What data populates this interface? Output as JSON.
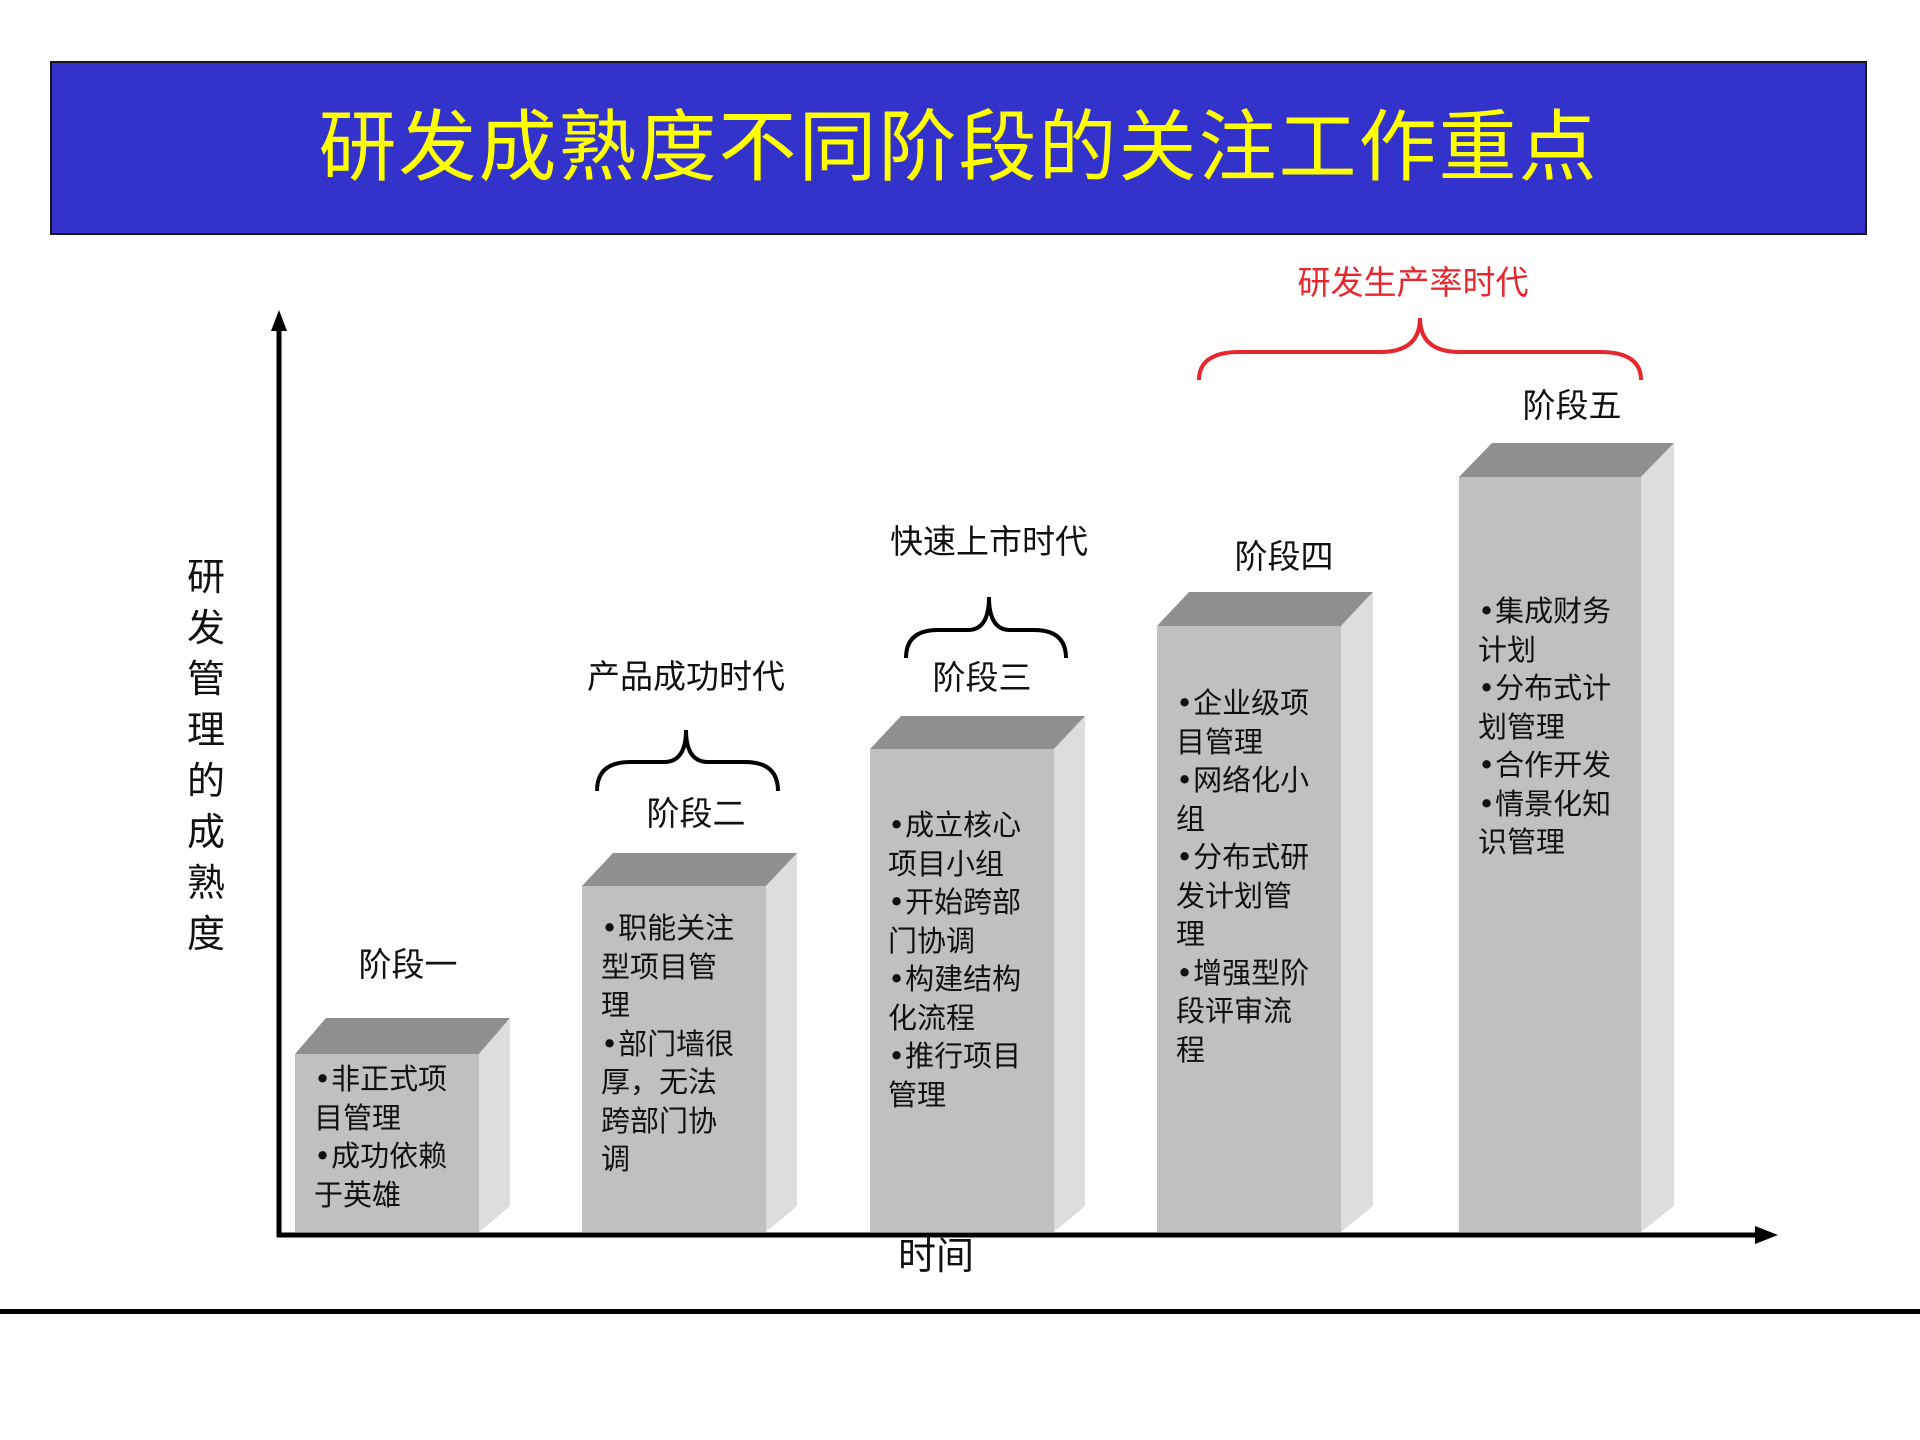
{
  "title": "研发成熟度不同阶段的关注工作重点",
  "axes": {
    "y_label": "研发管理的成熟度",
    "x_label": "时间"
  },
  "stages": [
    {
      "label": "阶段一",
      "items": "•非正式项\n目管理\n•成功依赖\n于英雄"
    },
    {
      "label": "阶段二",
      "items": "•职能关注\n型项目管\n理\n•部门墙很\n厚，无法\n跨部门协\n调"
    },
    {
      "label": "阶段三",
      "items": "•成立核心\n项目小组\n•开始跨部\n门协调\n•构建结构\n化流程\n•推行项目\n管理"
    },
    {
      "label": "阶段四",
      "items": "•企业级项\n目管理\n•网络化小\n组\n•分布式研\n发计划管\n理\n•增强型阶\n段评审流\n程"
    },
    {
      "label": "阶段五",
      "items": "•集成财务\n计划\n•分布式计\n划管理\n•合作开发\n•情景化知\n识管理"
    }
  ],
  "eras": [
    {
      "label": "产品成功时代"
    },
    {
      "label": "快速上市时代"
    },
    {
      "label": "研发生产率时代"
    }
  ],
  "colors": {
    "banner_bg": "#3333cc",
    "banner_text": "#ffff00",
    "block_front": "#c0c0c0",
    "block_top": "#8f8f8f",
    "block_side": "#dddddd",
    "era_accent": "#e8262d",
    "ink": "#000000"
  }
}
